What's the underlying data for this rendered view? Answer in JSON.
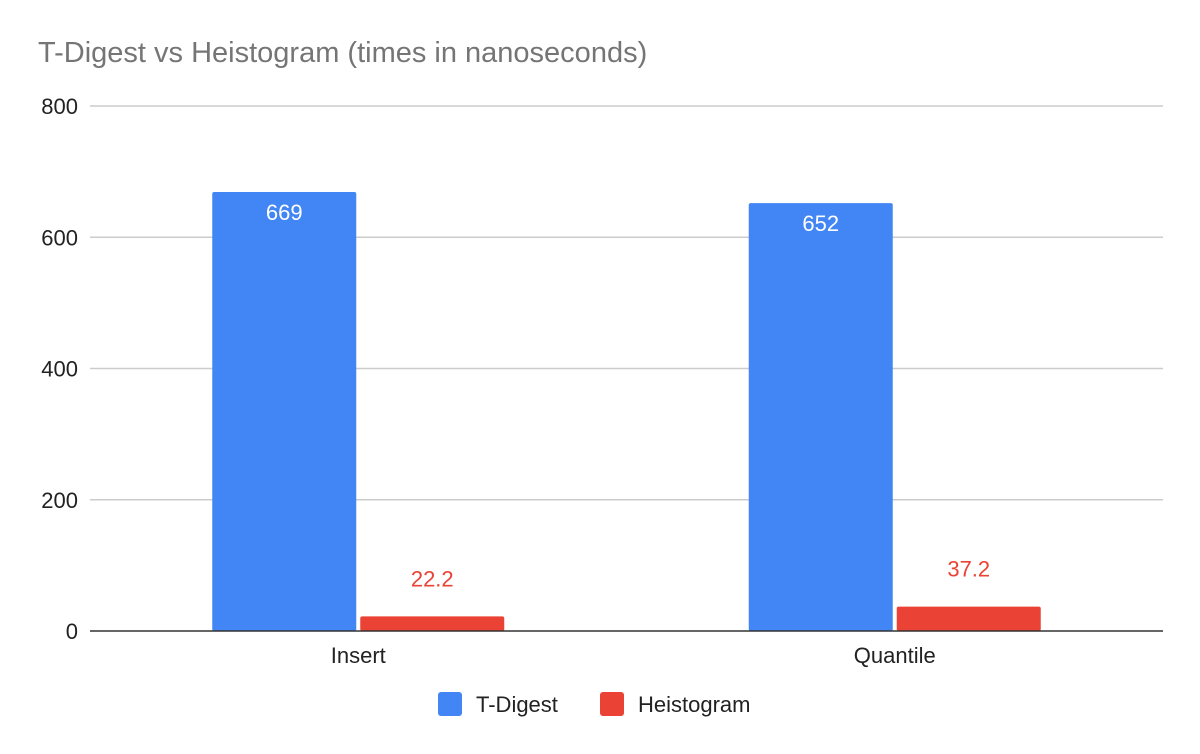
{
  "chart_data": {
    "type": "bar",
    "title": "T-Digest vs Heistogram (times in nanoseconds)",
    "categories": [
      "Insert",
      "Quantile"
    ],
    "series": [
      {
        "name": "T-Digest",
        "color": "#4285f4",
        "values": [
          669,
          652
        ],
        "labels": [
          "669",
          "652"
        ],
        "label_position": "inside",
        "label_color": "#ffffff"
      },
      {
        "name": "Heistogram",
        "color": "#ea4335",
        "values": [
          22.2,
          37.2
        ],
        "labels": [
          "22.2",
          "37.2"
        ],
        "label_position": "outside",
        "label_color": "#ea4335"
      }
    ],
    "ylim": [
      0,
      800
    ],
    "yticks": [
      0,
      200,
      400,
      600,
      800
    ],
    "ytick_labels": [
      "0",
      "200",
      "400",
      "600",
      "800"
    ],
    "grid": true,
    "legend_position": "bottom"
  }
}
